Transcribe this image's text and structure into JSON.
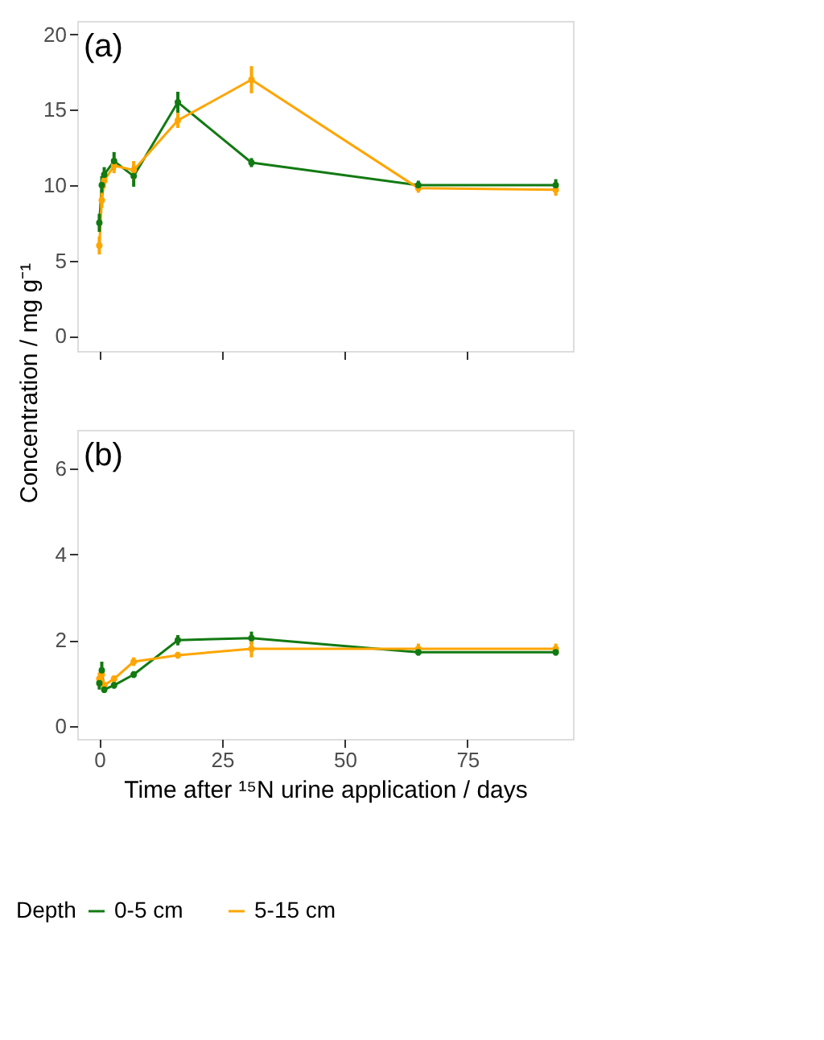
{
  "chart_data": [
    {
      "type": "line",
      "annotations": [
        "(a)"
      ],
      "ylabel": "Concentration / mg g⁻¹",
      "x": [
        0,
        0.5,
        1,
        3,
        7,
        16,
        31,
        65,
        93
      ],
      "xlim": [
        -4.5,
        96.5
      ],
      "xticks": [
        0,
        25,
        50,
        75
      ],
      "ylim": [
        -1,
        20.9
      ],
      "yticks": [
        0,
        5,
        10,
        15,
        20
      ],
      "tick_labels": "y",
      "grid": false,
      "marker": "circle",
      "legend": "bottom",
      "legend_title": "Depth",
      "series": [
        {
          "name": "0-5 cm",
          "color": "#127a12",
          "values": [
            7.5,
            10.0,
            10.7,
            11.6,
            10.6,
            15.5,
            11.5,
            10.0,
            10.0
          ],
          "errors": [
            0.6,
            0.6,
            0.5,
            0.6,
            0.7,
            0.7,
            0.3,
            0.3,
            0.4
          ]
        },
        {
          "name": "5-15 cm",
          "color": "#ffa500",
          "values": [
            6.0,
            9.0,
            10.3,
            11.3,
            11.0,
            14.3,
            17.0,
            9.8,
            9.7
          ],
          "errors": [
            0.6,
            0.5,
            0.5,
            0.5,
            0.6,
            0.5,
            0.9,
            0.3,
            0.4
          ]
        }
      ]
    },
    {
      "type": "line",
      "annotations": [
        "(b)"
      ],
      "xlabel": "Time after ¹⁵N urine application / days",
      "x": [
        0,
        0.5,
        1,
        3,
        7,
        16,
        31,
        65,
        93
      ],
      "xlim": [
        -4.5,
        96.5
      ],
      "xticks": [
        0,
        25,
        50,
        75
      ],
      "ylim": [
        -0.3,
        6.9
      ],
      "yticks": [
        0,
        2,
        4,
        6
      ],
      "grid": false,
      "marker": "circle",
      "legend": "bottom",
      "series": [
        {
          "name": "0-5 cm",
          "color": "#127a12",
          "values": [
            1.0,
            1.3,
            0.85,
            0.95,
            1.2,
            2.0,
            2.05,
            1.72,
            1.72
          ],
          "errors": [
            0.15,
            0.2,
            0.08,
            0.08,
            0.08,
            0.12,
            0.15,
            0.08,
            0.08
          ]
        },
        {
          "name": "5-15 cm",
          "color": "#ffa500",
          "values": [
            1.1,
            1.2,
            0.95,
            1.1,
            1.5,
            1.65,
            1.8,
            1.8,
            1.8
          ],
          "errors": [
            0.15,
            0.15,
            0.08,
            0.08,
            0.1,
            0.08,
            0.2,
            0.12,
            0.12
          ]
        }
      ]
    }
  ]
}
